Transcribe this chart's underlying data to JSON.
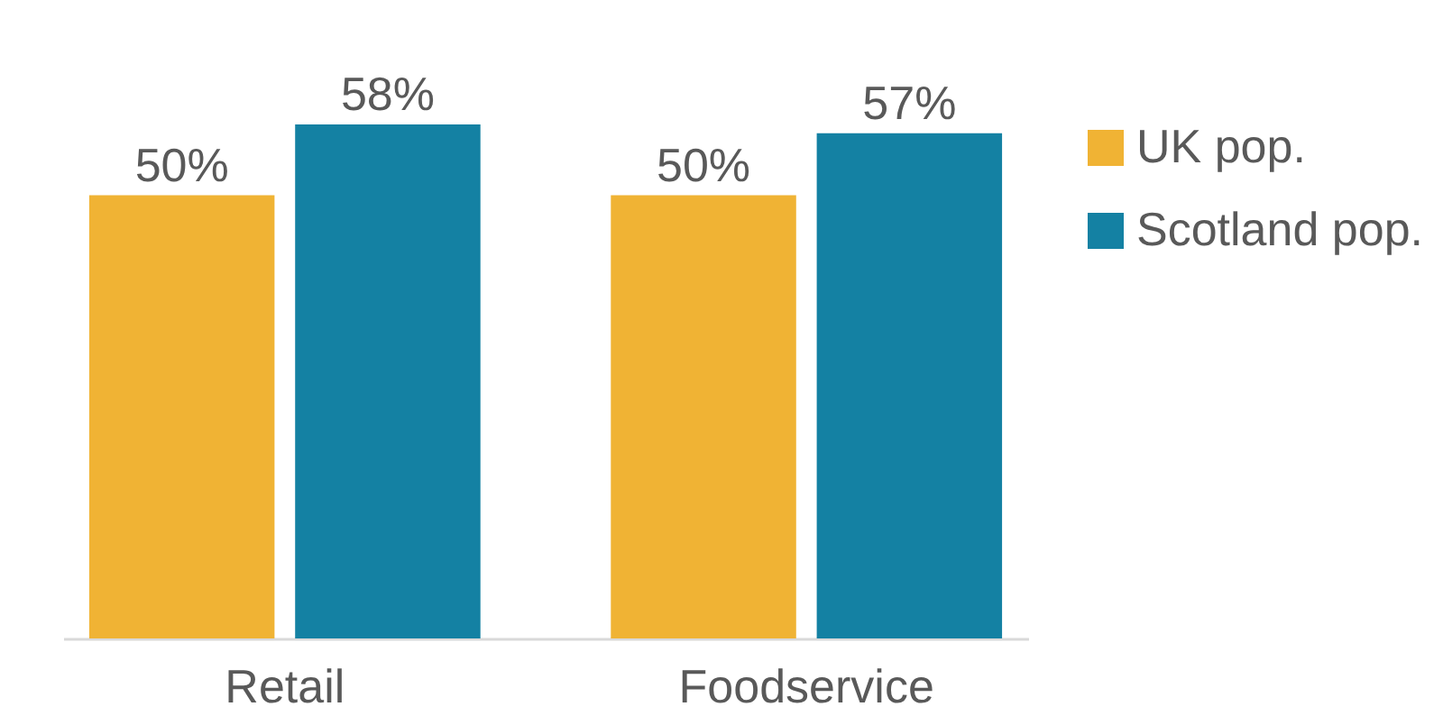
{
  "chart_data": {
    "type": "bar",
    "categories": [
      "Retail",
      "Foodservice"
    ],
    "series": [
      {
        "name": "UK pop.",
        "color": "#f0b334",
        "values": [
          50,
          50
        ],
        "value_labels": [
          "50%",
          "50%"
        ]
      },
      {
        "name": "Scotland pop.",
        "color": "#1481a3",
        "values": [
          58,
          57
        ],
        "value_labels": [
          "58%",
          "57%"
        ]
      }
    ],
    "ylim": [
      0,
      58
    ],
    "tick_labels": "x",
    "legend": "right"
  }
}
